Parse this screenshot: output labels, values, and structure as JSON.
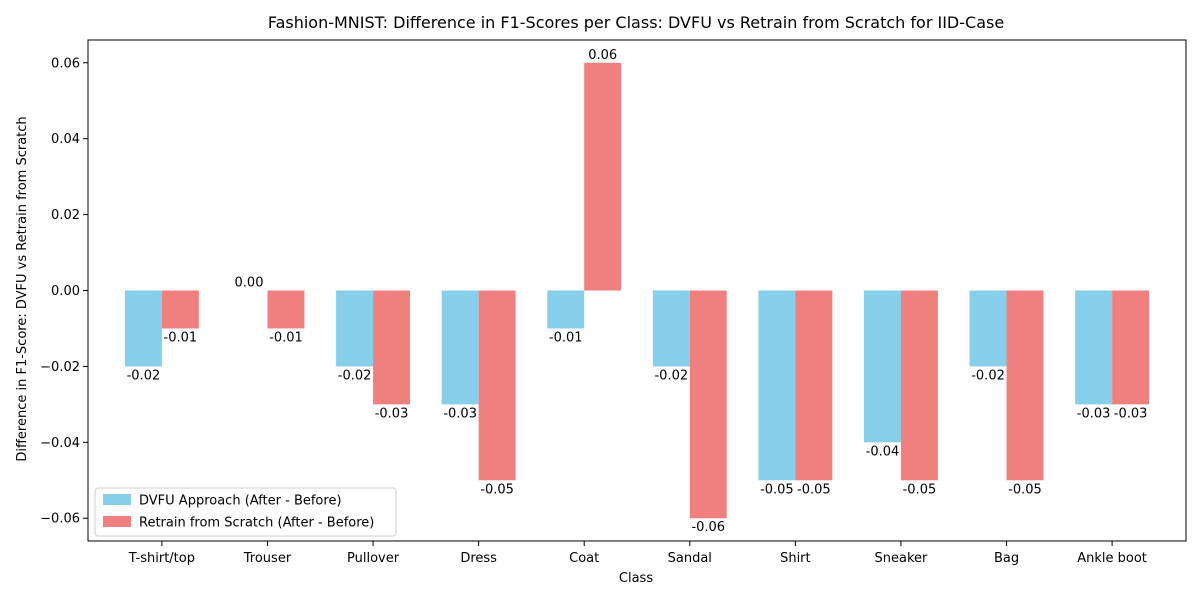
{
  "chart_data": {
    "type": "bar",
    "title": "Fashion-MNIST: Difference in F1-Scores per Class: DVFU vs Retrain from Scratch for IID-Case",
    "xlabel": "Class",
    "ylabel": "Difference in F1-Score: DVFU vs Retrain from Scratch",
    "ylim": [
      -0.066,
      0.066
    ],
    "yticks": [
      -0.06,
      -0.04,
      -0.02,
      0.0,
      0.02,
      0.04,
      0.06
    ],
    "ytick_labels": [
      "−0.06",
      "−0.04",
      "−0.02",
      "0.00",
      "0.02",
      "0.04",
      "0.06"
    ],
    "categories": [
      "T-shirt/top",
      "Trouser",
      "Pullover",
      "Dress",
      "Coat",
      "Sandal",
      "Shirt",
      "Sneaker",
      "Bag",
      "Ankle boot"
    ],
    "series": [
      {
        "name": "DVFU Approach (After - Before)",
        "color": "#87CEEB",
        "values": [
          -0.02,
          0.0,
          -0.02,
          -0.03,
          -0.01,
          -0.02,
          -0.05,
          -0.04,
          -0.02,
          -0.03
        ],
        "labels": [
          "-0.02",
          "0.00",
          "-0.02",
          "-0.03",
          "-0.01",
          "-0.02",
          "-0.05",
          "-0.04",
          "-0.02",
          "-0.03"
        ]
      },
      {
        "name": "Retrain from Scratch (After - Before)",
        "color": "#F08080",
        "values": [
          -0.01,
          -0.01,
          -0.03,
          -0.05,
          0.06,
          -0.06,
          -0.05,
          -0.05,
          -0.05,
          -0.03
        ],
        "labels": [
          "-0.01",
          "-0.01",
          "-0.03",
          "-0.05",
          "0.06",
          "-0.06",
          "-0.05",
          "-0.05",
          "-0.05",
          "-0.03"
        ]
      }
    ],
    "legend_position": "lower-left",
    "grid": false
  }
}
